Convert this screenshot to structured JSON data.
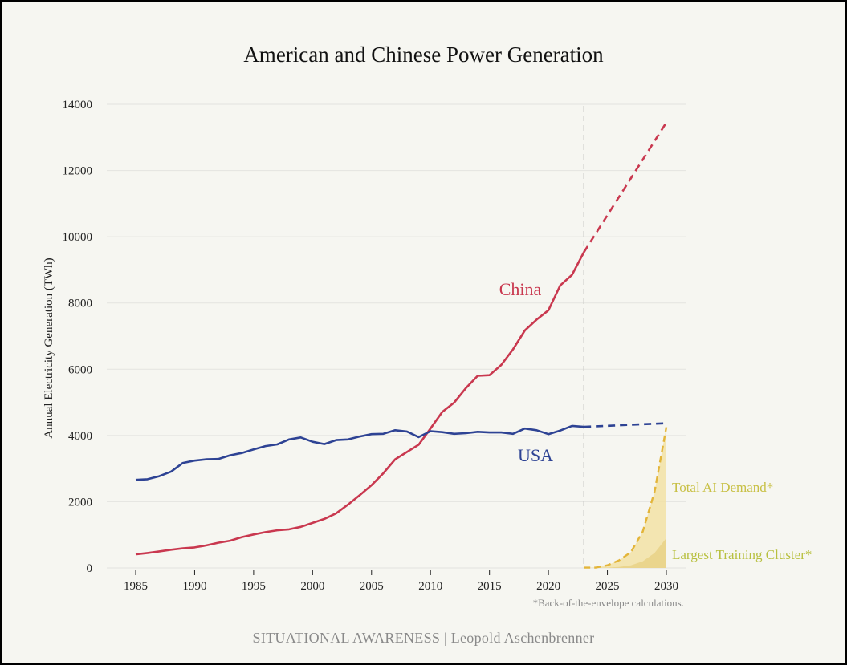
{
  "chart_data": {
    "type": "line",
    "title": "American and Chinese Power Generation",
    "ylabel": "Annual Electricity Generation (TWh)",
    "xlabel": "",
    "xlim": [
      1984,
      2031
    ],
    "ylim": [
      0,
      14000
    ],
    "xticks": [
      1985,
      1990,
      1995,
      2000,
      2005,
      2010,
      2015,
      2020,
      2025,
      2030
    ],
    "yticks": [
      0,
      2000,
      4000,
      6000,
      8000,
      10000,
      12000,
      14000
    ],
    "grid": "horizontal",
    "vline_x": 2023,
    "series": [
      {
        "name": "China",
        "color": "#c9384f",
        "x": [
          1985,
          1986,
          1987,
          1988,
          1989,
          1990,
          1991,
          1992,
          1993,
          1994,
          1995,
          1996,
          1997,
          1998,
          1999,
          2000,
          2001,
          2002,
          2003,
          2004,
          2005,
          2006,
          2007,
          2008,
          2009,
          2010,
          2011,
          2012,
          2013,
          2014,
          2015,
          2016,
          2017,
          2018,
          2019,
          2020,
          2021,
          2022,
          2023
        ],
        "values": [
          410,
          450,
          500,
          550,
          590,
          620,
          680,
          760,
          820,
          930,
          1010,
          1080,
          1135,
          1165,
          1240,
          1360,
          1480,
          1650,
          1910,
          2200,
          2500,
          2860,
          3280,
          3500,
          3720,
          4210,
          4710,
          4990,
          5430,
          5800,
          5820,
          6130,
          6600,
          7170,
          7500,
          7780,
          8530,
          8850,
          9530
        ],
        "projection": {
          "x": [
            2023,
            2030
          ],
          "values": [
            9530,
            13450
          ]
        }
      },
      {
        "name": "USA",
        "color": "#2e4394",
        "x": [
          1985,
          1986,
          1987,
          1988,
          1989,
          1990,
          1991,
          1992,
          1993,
          1994,
          1995,
          1996,
          1997,
          1998,
          1999,
          2000,
          2001,
          2002,
          2003,
          2004,
          2005,
          2006,
          2007,
          2008,
          2009,
          2010,
          2011,
          2012,
          2013,
          2014,
          2015,
          2016,
          2017,
          2018,
          2019,
          2020,
          2021,
          2022,
          2023
        ],
        "values": [
          2660,
          2680,
          2770,
          2910,
          3170,
          3240,
          3280,
          3290,
          3400,
          3470,
          3580,
          3680,
          3730,
          3880,
          3940,
          3810,
          3740,
          3860,
          3880,
          3970,
          4040,
          4050,
          4160,
          4120,
          3950,
          4130,
          4100,
          4050,
          4070,
          4110,
          4090,
          4090,
          4050,
          4210,
          4160,
          4040,
          4150,
          4290,
          4260
        ],
        "projection": {
          "x": [
            2023,
            2030
          ],
          "values": [
            4260,
            4370
          ]
        }
      },
      {
        "name": "Total AI Demand*",
        "color": "#e3b53a",
        "x": [
          2023,
          2024,
          2025,
          2026,
          2027,
          2028,
          2029,
          2030
        ],
        "values": [
          10,
          10,
          80,
          230,
          480,
          1100,
          2300,
          4250
        ]
      },
      {
        "name": "Largest Training Cluster*",
        "color": "#ecd68a",
        "x": [
          2023,
          2024,
          2025,
          2026,
          2027,
          2028,
          2029,
          2030
        ],
        "values": [
          0,
          2,
          10,
          30,
          80,
          200,
          450,
          900
        ]
      }
    ],
    "annotations": {
      "china": "China",
      "usa": "USA",
      "ai_demand": "Total AI Demand*",
      "training_cluster": "Largest Training Cluster*",
      "footnote": "*Back-of-the-envelope calculations."
    }
  },
  "footer": {
    "credit": "SITUATIONAL AWARENESS | Leopold Aschenbrenner"
  }
}
